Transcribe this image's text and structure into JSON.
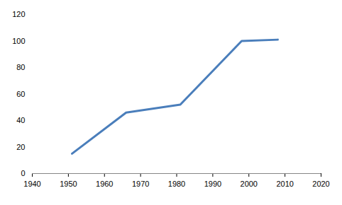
{
  "chart_data": {
    "type": "line",
    "x": [
      1951,
      1966,
      1981,
      1998,
      2008
    ],
    "values": [
      15,
      46,
      52,
      100,
      101
    ],
    "color": "#4a7ebb",
    "xlim": [
      1940,
      2020
    ],
    "xticks": [
      1940,
      1950,
      1960,
      1970,
      1980,
      1990,
      2000,
      2010,
      2020
    ],
    "ylim": [
      0,
      120
    ],
    "yticks": [
      0,
      20,
      40,
      60,
      80,
      100,
      120
    ],
    "grid": false
  }
}
